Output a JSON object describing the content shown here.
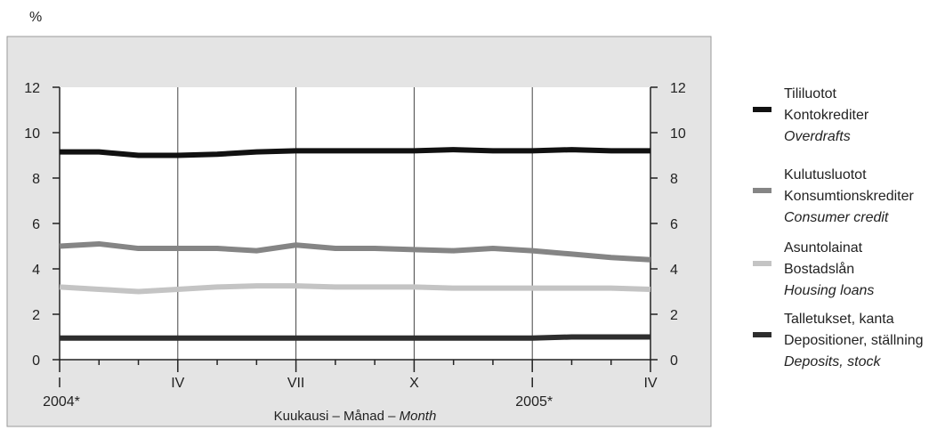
{
  "unit_label": "%",
  "chart_data": {
    "type": "line",
    "x": [
      "I",
      "",
      "",
      "IV",
      "",
      "",
      "VII",
      "",
      "",
      "X",
      "",
      "",
      "I",
      "",
      "",
      "IV"
    ],
    "x_tick_labels": [
      "I",
      "IV",
      "VII",
      "X",
      "I",
      "IV"
    ],
    "x_year_labels": [
      {
        "tick": "I",
        "year": "2004*"
      },
      {
        "tick": "I",
        "year": "2005*"
      }
    ],
    "xlabel_parts": [
      {
        "text": "Kuukausi – Månad – ",
        "italic": false
      },
      {
        "text": "Month",
        "italic": true
      }
    ],
    "ylim": [
      0,
      12
    ],
    "y_ticks": [
      0,
      2,
      4,
      6,
      8,
      10,
      12
    ],
    "secondary_y_axis": true,
    "grid": "vertical at quarter months",
    "legend_position": "right",
    "series": [
      {
        "name_lines": [
          "Tililuotot",
          "Kontokrediter",
          "Overdrafts"
        ],
        "color": "#111111",
        "values": [
          9.15,
          9.15,
          9.0,
          9.0,
          9.05,
          9.15,
          9.2,
          9.2,
          9.2,
          9.2,
          9.25,
          9.2,
          9.2,
          9.25,
          9.2,
          9.2
        ]
      },
      {
        "name_lines": [
          "Kulutusluotot",
          "Konsumtionskrediter",
          "Consumer credit"
        ],
        "color": "#858585",
        "values": [
          5.0,
          5.1,
          4.9,
          4.9,
          4.9,
          4.8,
          5.05,
          4.9,
          4.9,
          4.85,
          4.8,
          4.9,
          4.8,
          4.65,
          4.5,
          4.4
        ]
      },
      {
        "name_lines": [
          "Asuntolainat",
          "Bostadslån",
          "Housing loans"
        ],
        "color": "#c4c4c4",
        "values": [
          3.2,
          3.1,
          3.0,
          3.1,
          3.2,
          3.25,
          3.25,
          3.2,
          3.2,
          3.2,
          3.15,
          3.15,
          3.15,
          3.15,
          3.15,
          3.1
        ]
      },
      {
        "name_lines": [
          "Talletukset, kanta",
          "Depositioner, ställning",
          "Deposits, stock"
        ],
        "color": "#2e2e2e",
        "values": [
          0.95,
          0.95,
          0.95,
          0.95,
          0.95,
          0.95,
          0.95,
          0.95,
          0.95,
          0.95,
          0.95,
          0.95,
          0.95,
          1.0,
          1.0,
          1.0
        ]
      }
    ]
  }
}
